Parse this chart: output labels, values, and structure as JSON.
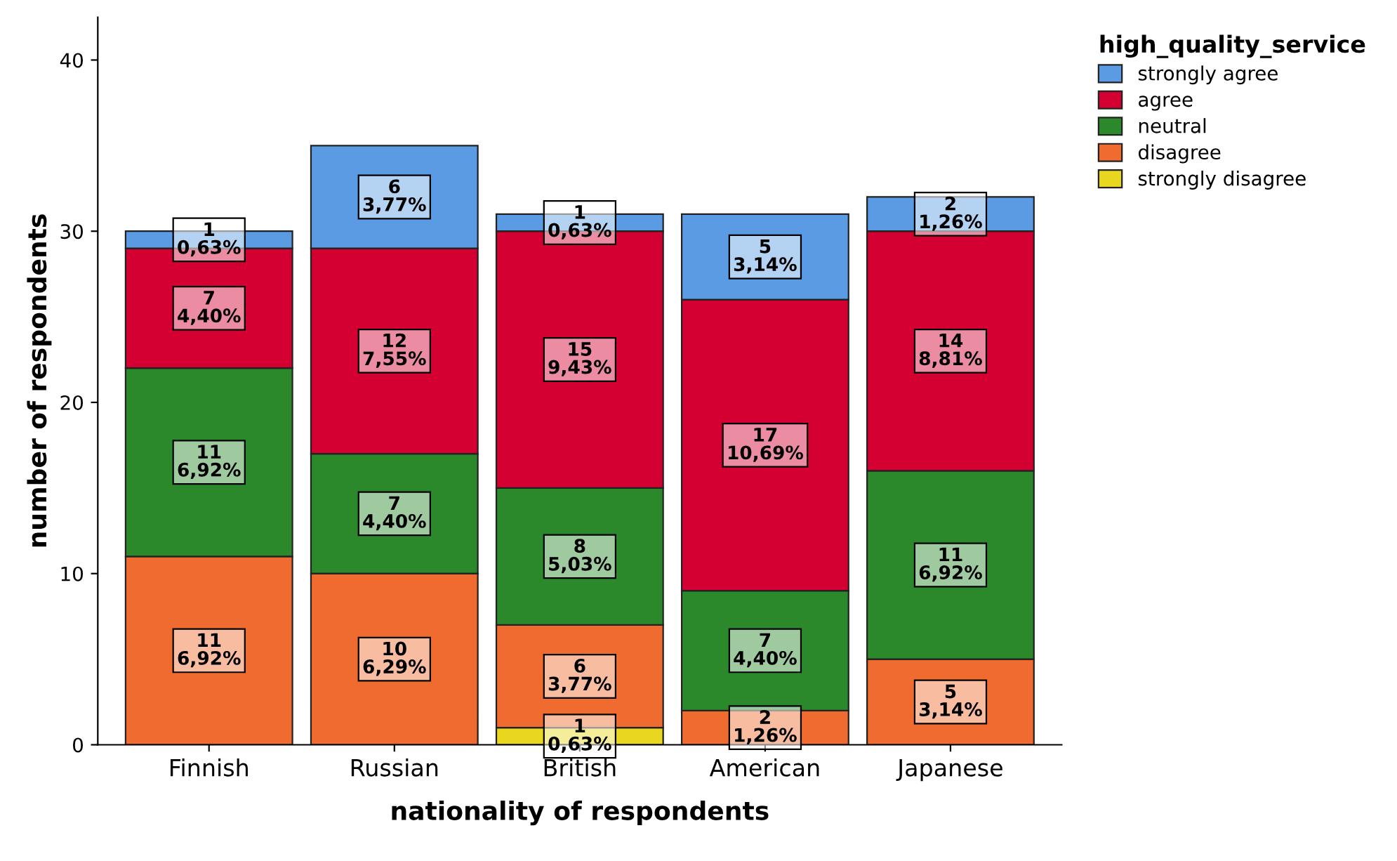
{
  "chart_data": {
    "type": "bar",
    "stacked": true,
    "xlabel": "nationality of respondents",
    "ylabel": "number of respondents",
    "legend_title": "high_quality_service",
    "legend": "top right",
    "grid": false,
    "categories": [
      "Finnish",
      "Russian",
      "British",
      "American",
      "Japanese"
    ],
    "ylim": [
      0,
      42.5
    ],
    "yticks": [
      0,
      10,
      20,
      30,
      40
    ],
    "series": [
      {
        "name": "strongly disagree",
        "color": "#e8d71e",
        "values": [
          0,
          0,
          1,
          0,
          0
        ],
        "value_labels": [
          null,
          null,
          "1\n0,63%",
          null,
          null
        ]
      },
      {
        "name": "disagree",
        "color": "#f06b2f",
        "values": [
          11,
          10,
          6,
          2,
          5
        ],
        "value_labels": [
          "11\n6,92%",
          "10\n6,29%",
          "6\n3,77%",
          "2\n1,26%",
          "5\n3,14%"
        ]
      },
      {
        "name": "neutral",
        "color": "#2b892b",
        "values": [
          11,
          7,
          8,
          7,
          11
        ],
        "value_labels": [
          "11\n6,92%",
          "7\n4,40%",
          "8\n5,03%",
          "7\n4,40%",
          "11\n6,92%"
        ]
      },
      {
        "name": "agree",
        "color": "#d50032",
        "values": [
          7,
          12,
          15,
          17,
          14
        ],
        "value_labels": [
          "7\n4,40%",
          "12\n7,55%",
          "15\n9,43%",
          "17\n10,69%",
          "14\n8,81%"
        ]
      },
      {
        "name": "strongly agree",
        "color": "#5a9be3",
        "values": [
          1,
          6,
          1,
          5,
          2
        ],
        "value_labels": [
          "1\n0,63%",
          "6\n3,77%",
          "1\n0,63%",
          "5\n3,14%",
          "2\n1,26%"
        ]
      }
    ]
  }
}
